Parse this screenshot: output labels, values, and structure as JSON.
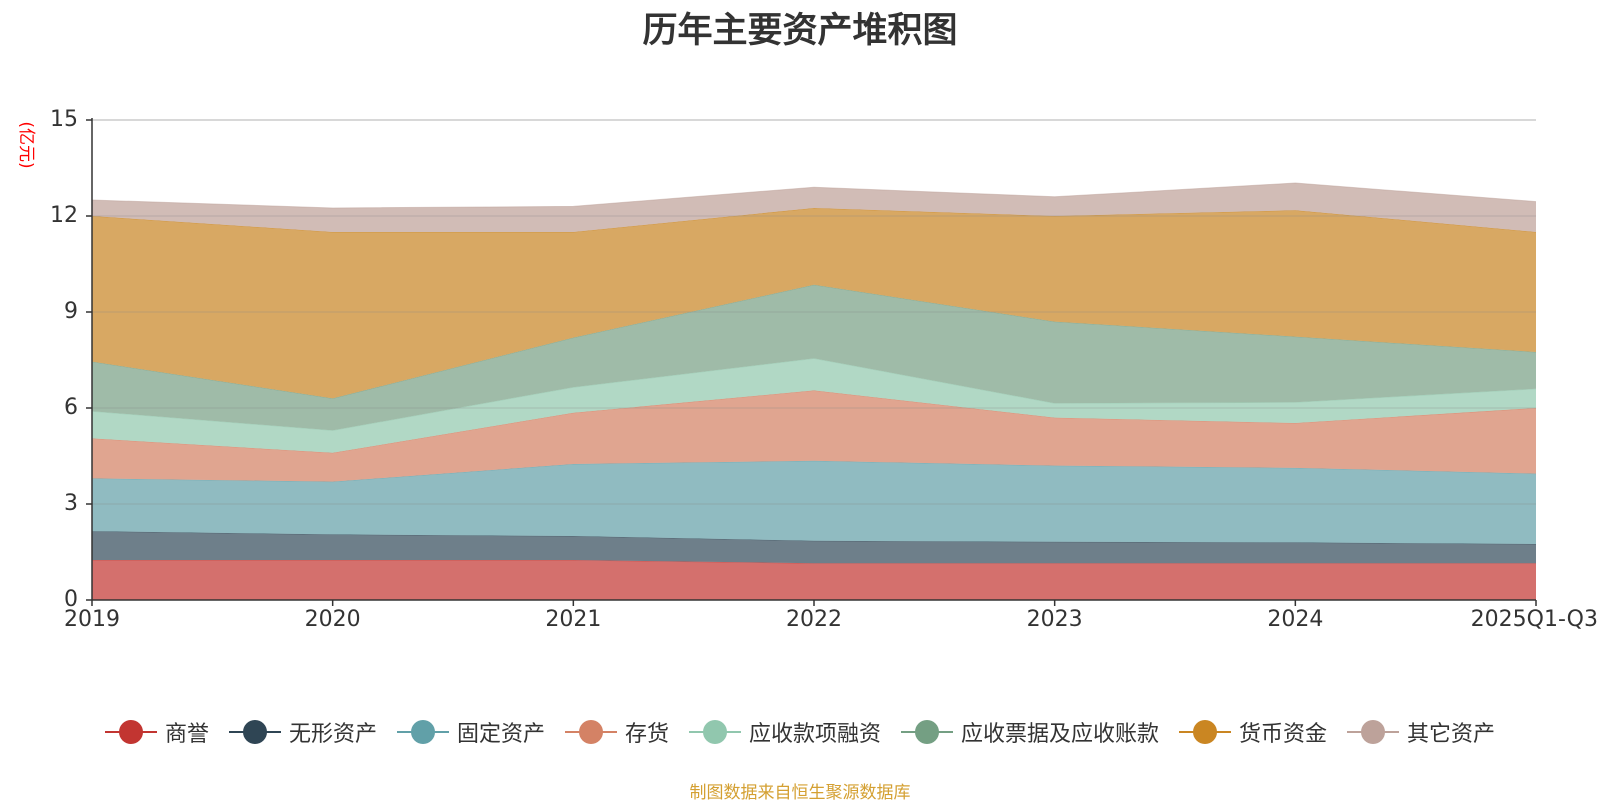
{
  "chart_data": {
    "type": "area",
    "stacked": true,
    "title": "历年主要资产堆积图",
    "ylabel": "(亿元)",
    "xlabel": "",
    "ylim": [
      0,
      15
    ],
    "yticks": [
      0,
      3,
      6,
      9,
      12,
      15
    ],
    "categories": [
      "2019",
      "2020",
      "2021",
      "2022",
      "2023",
      "2024",
      "2025Q1-Q3"
    ],
    "grid": true,
    "legend_position": "bottom",
    "source": "制图数据来自恒生聚源数据库",
    "series": [
      {
        "name": "商誉",
        "color": "#c23531",
        "fill": "#d4706d",
        "values": [
          1.25,
          1.25,
          1.25,
          1.15,
          1.15,
          1.15,
          1.15
        ]
      },
      {
        "name": "无形资产",
        "color": "#2f4554",
        "fill": "#6e7f8a",
        "values": [
          0.9,
          0.8,
          0.75,
          0.7,
          0.67,
          0.65,
          0.6
        ]
      },
      {
        "name": "固定资产",
        "color": "#61a0a8",
        "fill": "#90bbc1",
        "values": [
          1.65,
          1.65,
          2.25,
          2.5,
          2.38,
          2.33,
          2.2
        ]
      },
      {
        "name": "存货",
        "color": "#d48265",
        "fill": "#e0a590",
        "values": [
          1.25,
          0.9,
          1.6,
          2.2,
          1.5,
          1.4,
          2.05
        ]
      },
      {
        "name": "应收款项融资",
        "color": "#91c7ae",
        "fill": "#b1d8c5",
        "values": [
          0.85,
          0.7,
          0.8,
          1.0,
          0.45,
          0.65,
          0.6
        ]
      },
      {
        "name": "应收票据及应收账款",
        "color": "#749f83",
        "fill": "#9fbba8",
        "values": [
          1.55,
          1.0,
          1.55,
          2.3,
          2.55,
          2.05,
          1.15
        ]
      },
      {
        "name": "货币资金",
        "color": "#ca8622",
        "fill": "#d8a863",
        "values": [
          4.55,
          5.2,
          3.3,
          2.4,
          3.3,
          3.95,
          3.75
        ]
      },
      {
        "name": "其它资产",
        "color": "#bda29a",
        "fill": "#d1bcb6",
        "values": [
          0.5,
          0.75,
          0.8,
          0.65,
          0.6,
          0.85,
          0.95
        ]
      }
    ]
  }
}
